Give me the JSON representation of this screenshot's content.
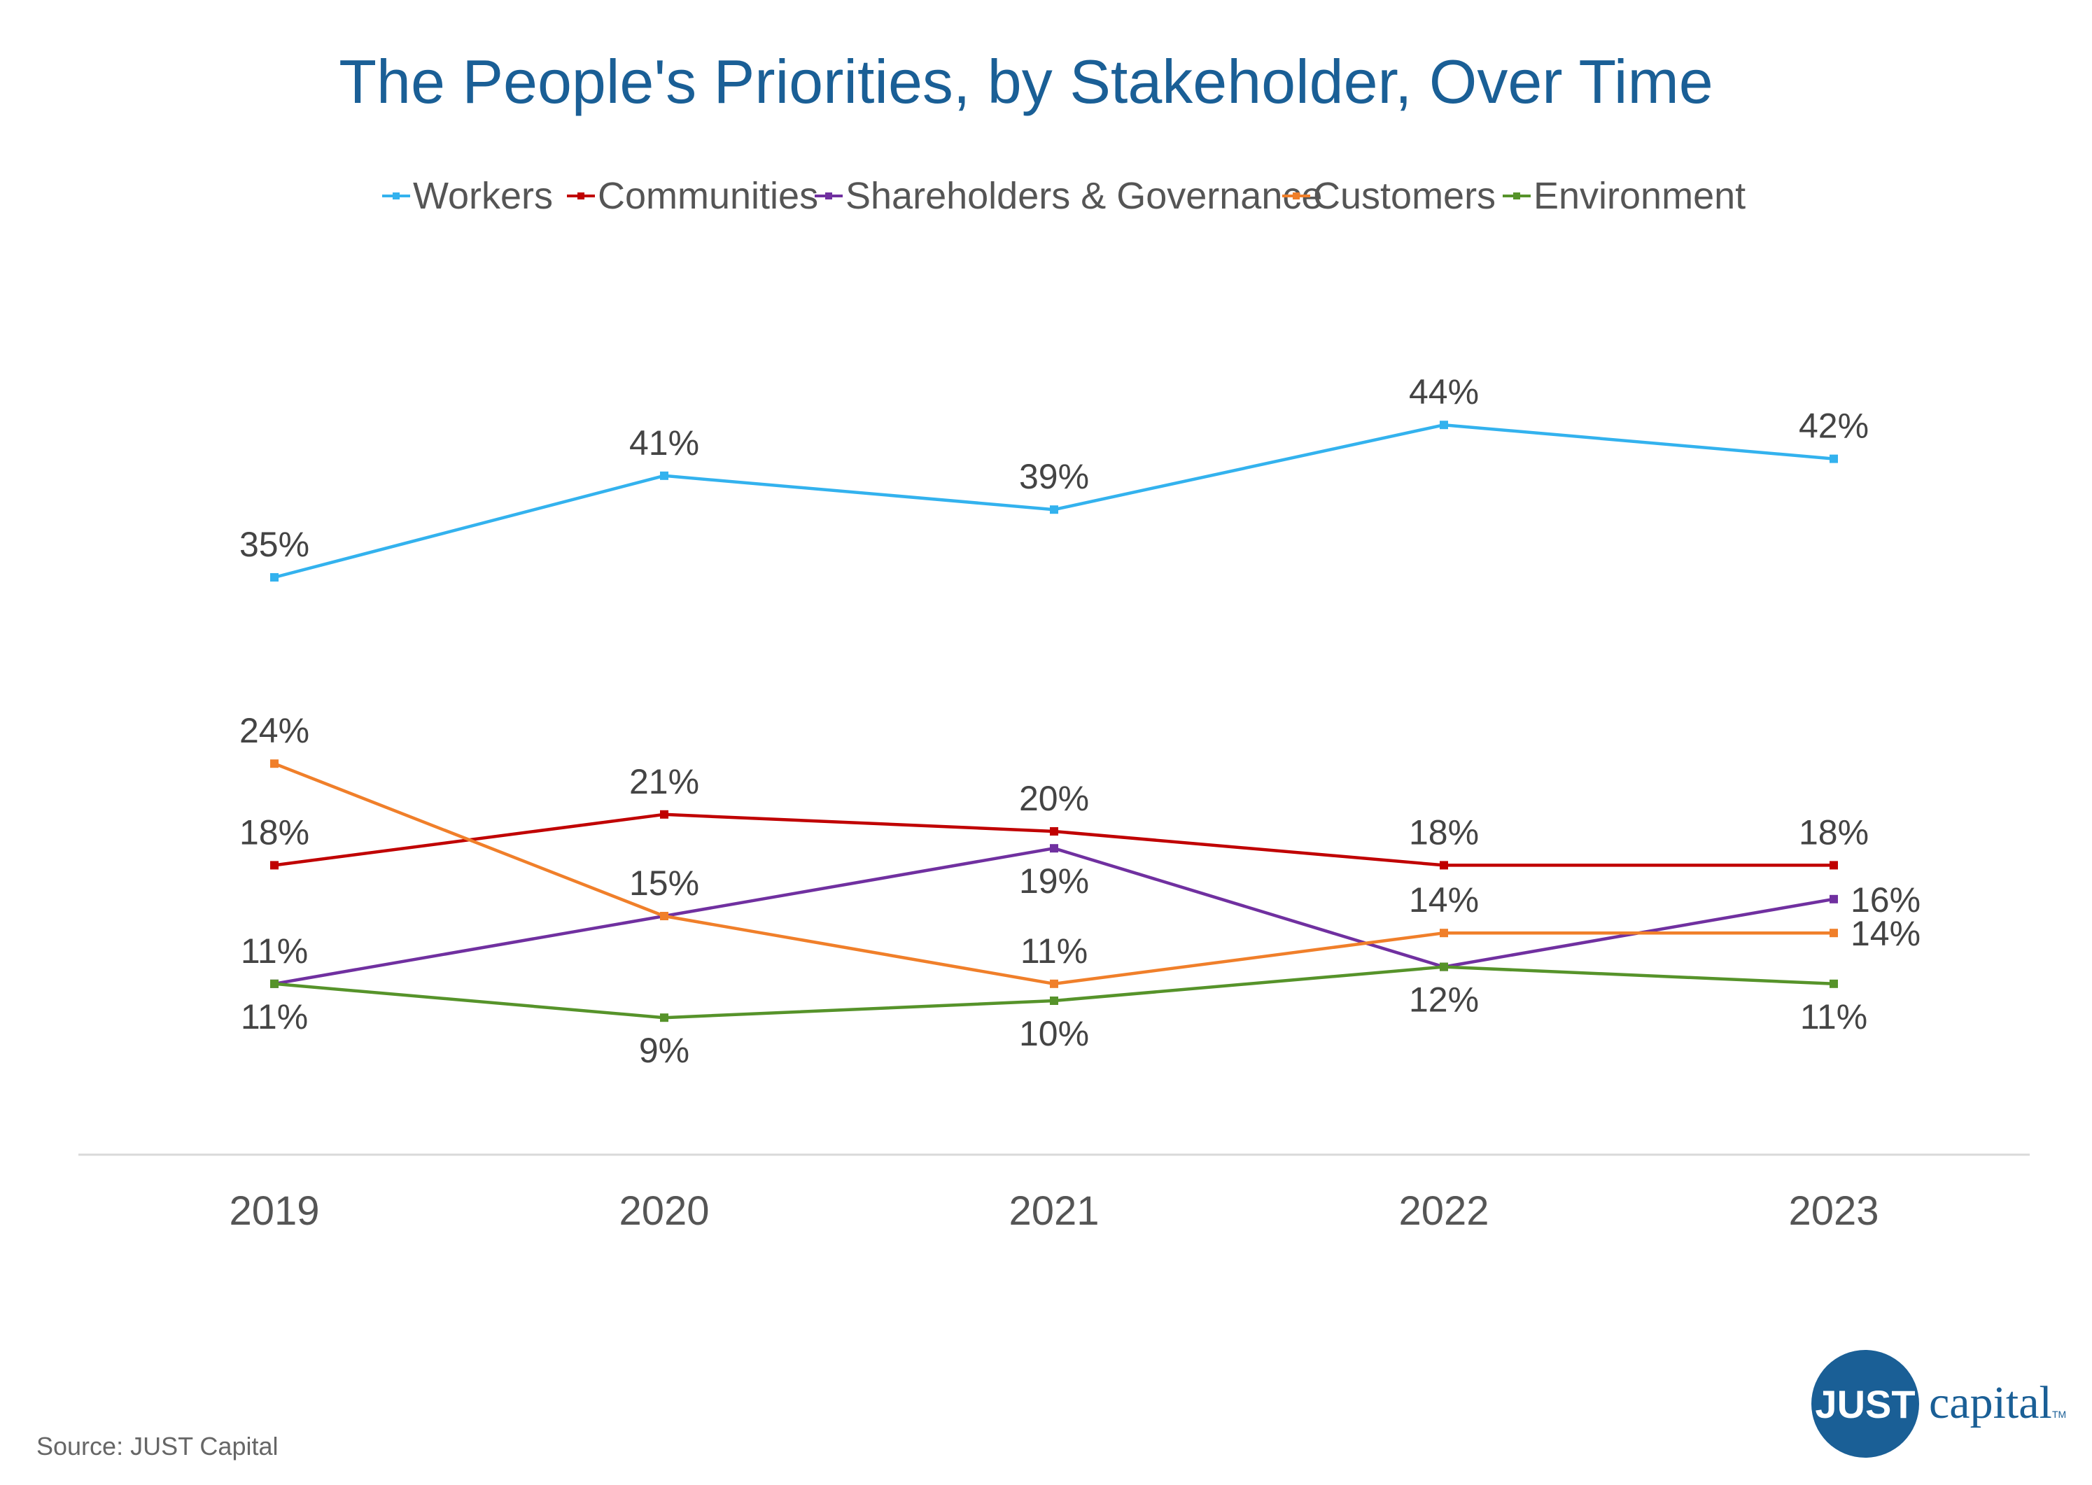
{
  "chart_data": {
    "type": "line",
    "title": "The People's Priorities, by Stakeholder, Over Time",
    "categories": [
      "2019",
      "2020",
      "2021",
      "2022",
      "2023"
    ],
    "series": [
      {
        "name": "Workers",
        "color": "#33b2ee",
        "values": [
          35,
          41,
          39,
          44,
          42
        ],
        "labels": [
          "35%",
          "41%",
          "39%",
          "44%",
          "42%"
        ],
        "label_pos": [
          "above",
          "above",
          "above",
          "above",
          "above"
        ]
      },
      {
        "name": "Communities",
        "color": "#c00000",
        "values": [
          18,
          21,
          20,
          18,
          18
        ],
        "labels": [
          "18%",
          "21%",
          "20%",
          "18%",
          "18%"
        ],
        "label_pos": [
          "above",
          "above",
          "above",
          "above",
          "above"
        ]
      },
      {
        "name": "Shareholders & Governance",
        "color": "#7030a0",
        "values": [
          11,
          15,
          19,
          12,
          16
        ],
        "labels": [
          "11%",
          "15%",
          "19%",
          "12%",
          "16%"
        ],
        "label_pos": [
          "above",
          "above",
          "below",
          "below",
          "right"
        ]
      },
      {
        "name": "Customers",
        "color": "#f07f2a",
        "values": [
          24,
          15,
          11,
          14,
          14
        ],
        "labels": [
          "24%",
          "",
          "11%",
          "14%",
          "14%"
        ],
        "label_pos": [
          "above",
          "none",
          "above",
          "above",
          "right"
        ]
      },
      {
        "name": "Environment",
        "color": "#56932a",
        "values": [
          11,
          9,
          10,
          12,
          11
        ],
        "labels": [
          "11%",
          "9%",
          "10%",
          "",
          "11%"
        ],
        "label_pos": [
          "below",
          "below",
          "below",
          "none",
          "below"
        ]
      }
    ],
    "legend_position": "top",
    "grid": false,
    "y_axis_visible": false
  },
  "footer": {
    "source": "Source: JUST Capital"
  },
  "logo": {
    "badge_text": "JUST",
    "word_text": "capital",
    "tm": "TM",
    "color": "#1a5f96"
  }
}
